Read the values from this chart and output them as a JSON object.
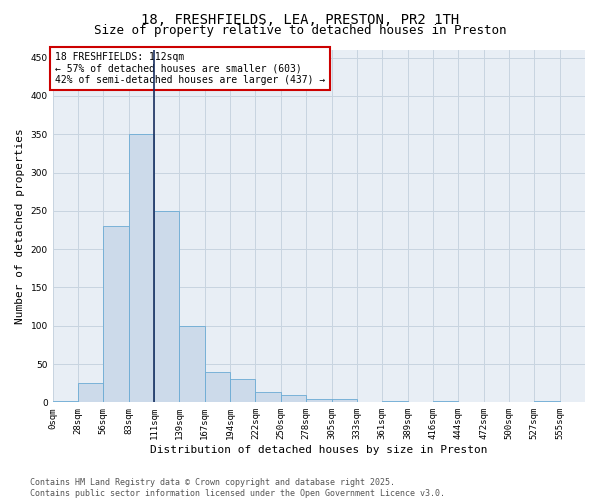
{
  "title": "18, FRESHFIELDS, LEA, PRESTON, PR2 1TH",
  "subtitle": "Size of property relative to detached houses in Preston",
  "xlabel": "Distribution of detached houses by size in Preston",
  "ylabel": "Number of detached properties",
  "bin_labels": [
    "0sqm",
    "28sqm",
    "56sqm",
    "83sqm",
    "111sqm",
    "139sqm",
    "167sqm",
    "194sqm",
    "222sqm",
    "250sqm",
    "278sqm",
    "305sqm",
    "333sqm",
    "361sqm",
    "389sqm",
    "416sqm",
    "444sqm",
    "472sqm",
    "500sqm",
    "527sqm",
    "555sqm"
  ],
  "bar_values": [
    2,
    25,
    230,
    350,
    250,
    100,
    40,
    30,
    13,
    10,
    4,
    4,
    0,
    2,
    0,
    2,
    0,
    0,
    0,
    2,
    0
  ],
  "bar_color": "#ccdaea",
  "bar_edge_color": "#6aaad4",
  "grid_color": "#c8d4e0",
  "background_color": "#e8eef5",
  "vline_x_index": 4,
  "vline_color": "#1a3060",
  "annotation_text": "18 FRESHFIELDS: 112sqm\n← 57% of detached houses are smaller (603)\n42% of semi-detached houses are larger (437) →",
  "annotation_box_facecolor": "#ffffff",
  "annotation_border_color": "#cc0000",
  "ylim": [
    0,
    460
  ],
  "yticks": [
    0,
    50,
    100,
    150,
    200,
    250,
    300,
    350,
    400,
    450
  ],
  "footer": "Contains HM Land Registry data © Crown copyright and database right 2025.\nContains public sector information licensed under the Open Government Licence v3.0.",
  "title_fontsize": 10,
  "subtitle_fontsize": 9,
  "axis_label_fontsize": 8,
  "tick_fontsize": 6.5,
  "annotation_fontsize": 7,
  "footer_fontsize": 6
}
